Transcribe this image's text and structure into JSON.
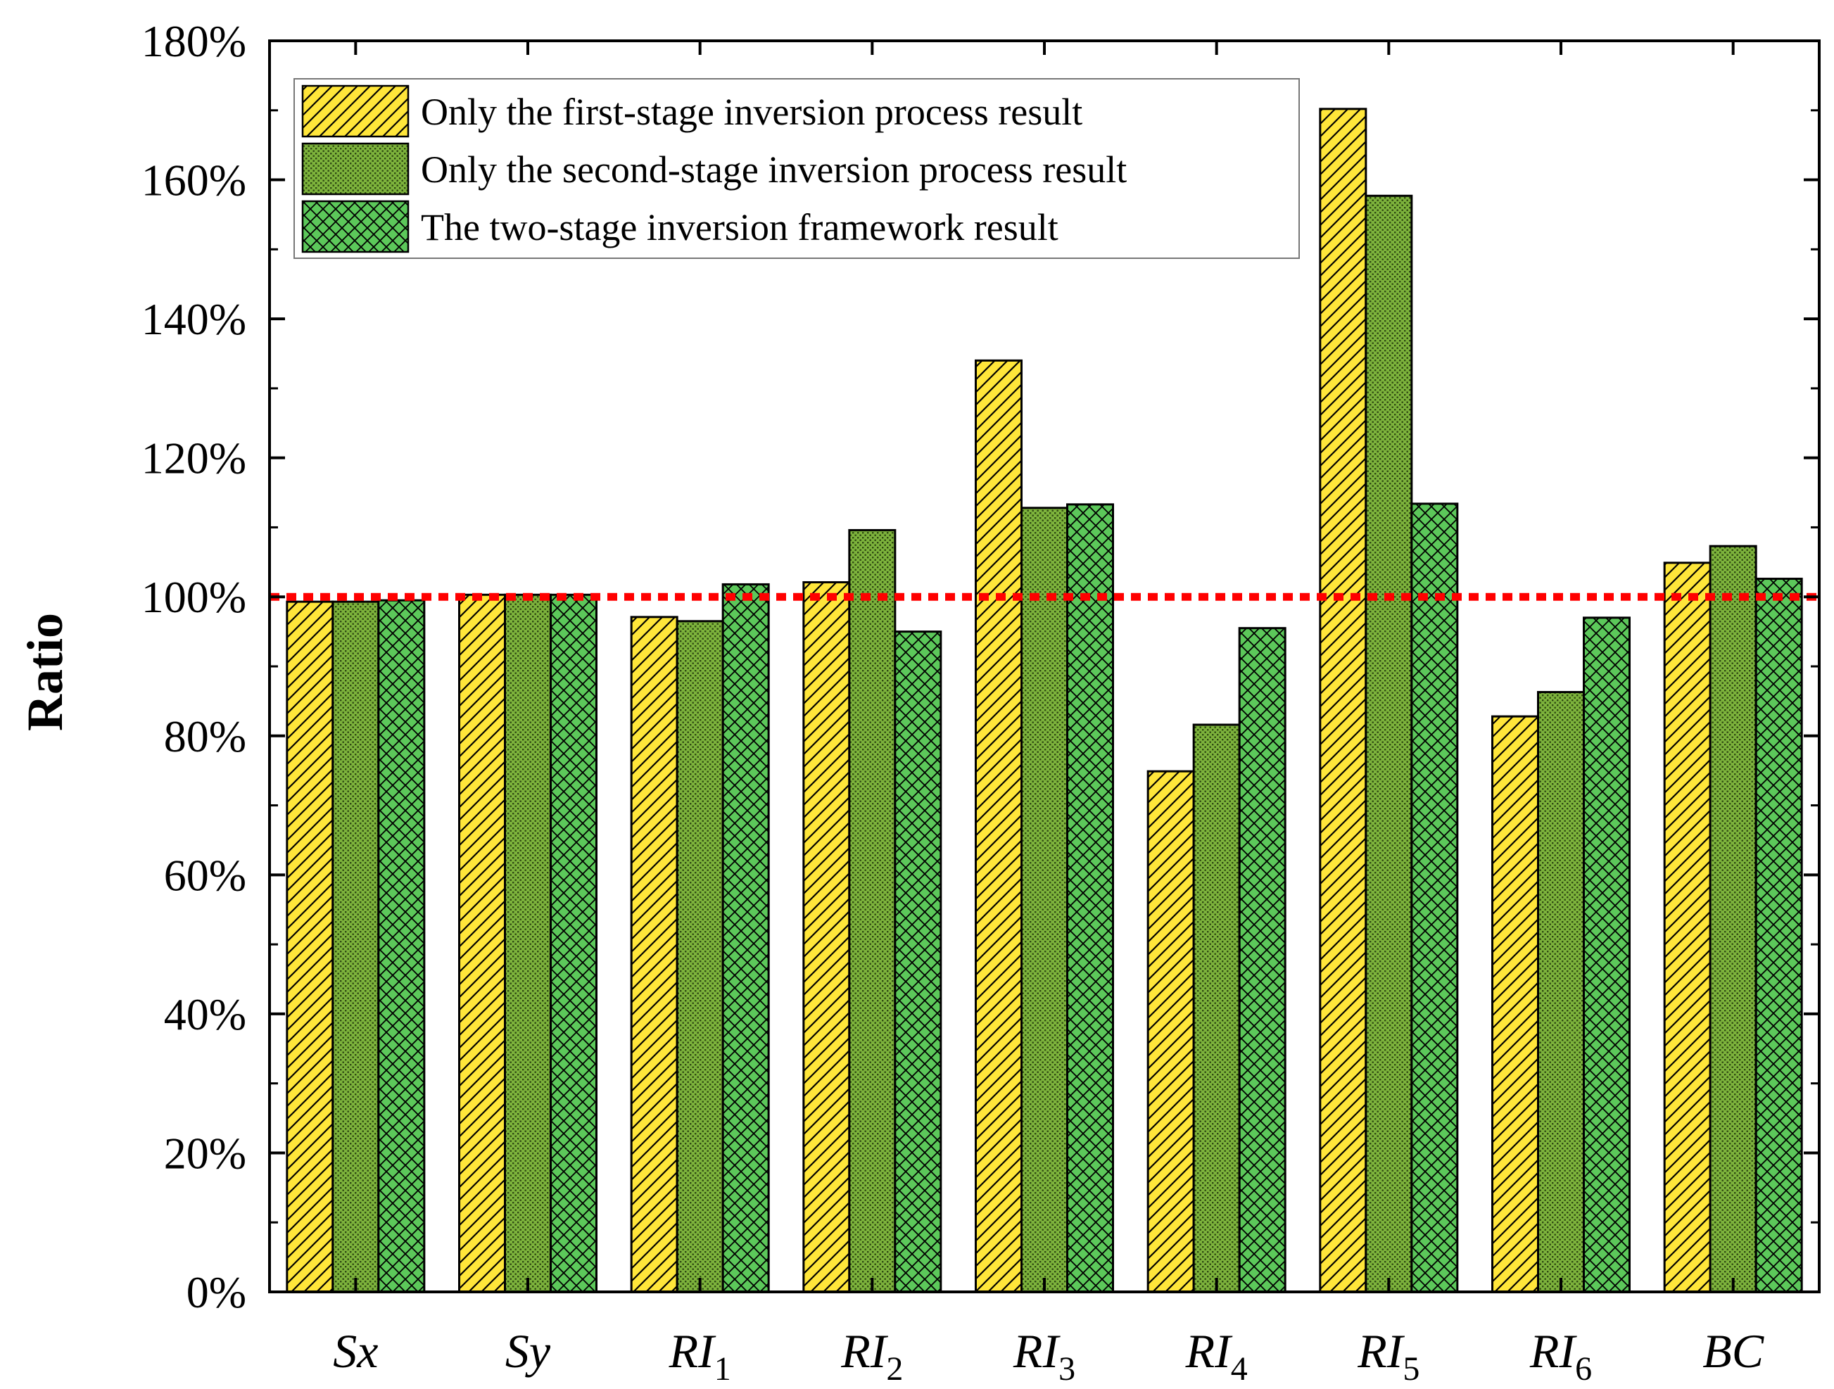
{
  "chart_data": {
    "type": "bar",
    "title": "",
    "xlabel": "",
    "ylabel": "Ratio",
    "ylim": [
      0,
      180
    ],
    "y_ticks": [
      0,
      20,
      40,
      60,
      80,
      100,
      120,
      140,
      160,
      180
    ],
    "y_tick_suffix": "%",
    "categories": [
      {
        "main": "Sx",
        "sub": ""
      },
      {
        "main": "Sy",
        "sub": ""
      },
      {
        "main": "RI",
        "sub": "1"
      },
      {
        "main": "RI",
        "sub": "2"
      },
      {
        "main": "RI",
        "sub": "3"
      },
      {
        "main": "RI",
        "sub": "4"
      },
      {
        "main": "RI",
        "sub": "5"
      },
      {
        "main": "RI",
        "sub": "6"
      },
      {
        "main": "BC",
        "sub": ""
      }
    ],
    "series": [
      {
        "name": "Only the first-stage inversion process result",
        "color": "#ffe63a",
        "pattern": "diagonal",
        "values": [
          99.3,
          100.3,
          97.1,
          102.1,
          134.0,
          74.9,
          170.2,
          82.8,
          104.9
        ]
      },
      {
        "name": "Only the second-stage inversion process result",
        "color": "#7db33c",
        "pattern": "dots",
        "values": [
          99.3,
          100.3,
          96.5,
          109.6,
          112.8,
          81.6,
          157.7,
          86.3,
          107.3
        ]
      },
      {
        "name": "The two-stage inversion framework result",
        "color": "#5cc85a",
        "pattern": "crosshatch",
        "values": [
          99.5,
          100.3,
          101.8,
          95.0,
          113.3,
          95.5,
          113.4,
          97.0,
          102.6
        ]
      }
    ],
    "reference_line": {
      "value": 100,
      "color": "#ff0000",
      "style": "dotted"
    },
    "legend_position": "top-left",
    "grid": false
  }
}
